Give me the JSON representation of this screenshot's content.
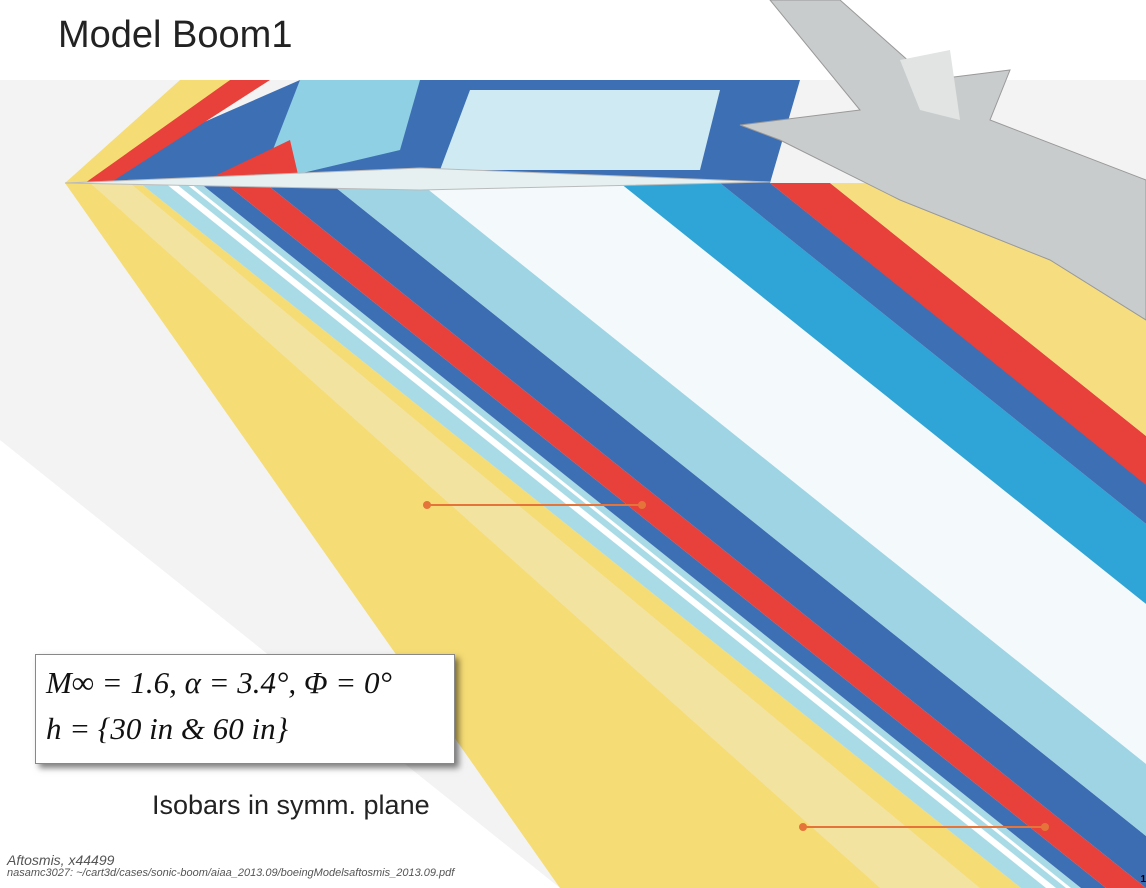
{
  "slide": {
    "title": "Model Boom1",
    "conditions": {
      "line1": "M∞ = 1.6,  α = 3.4°,  Φ = 0°",
      "line2": "h = {30 in & 60 in}"
    },
    "caption": "Isobars in symm. plane",
    "footer": {
      "author": "Aftosmis, x44499",
      "path": "nasamc3027: ~/cart3d/cases/sonic-boom/aiaa_2013.09/boeingModelsaftosmis_2013.09.pdf"
    },
    "page_number": "1"
  }
}
